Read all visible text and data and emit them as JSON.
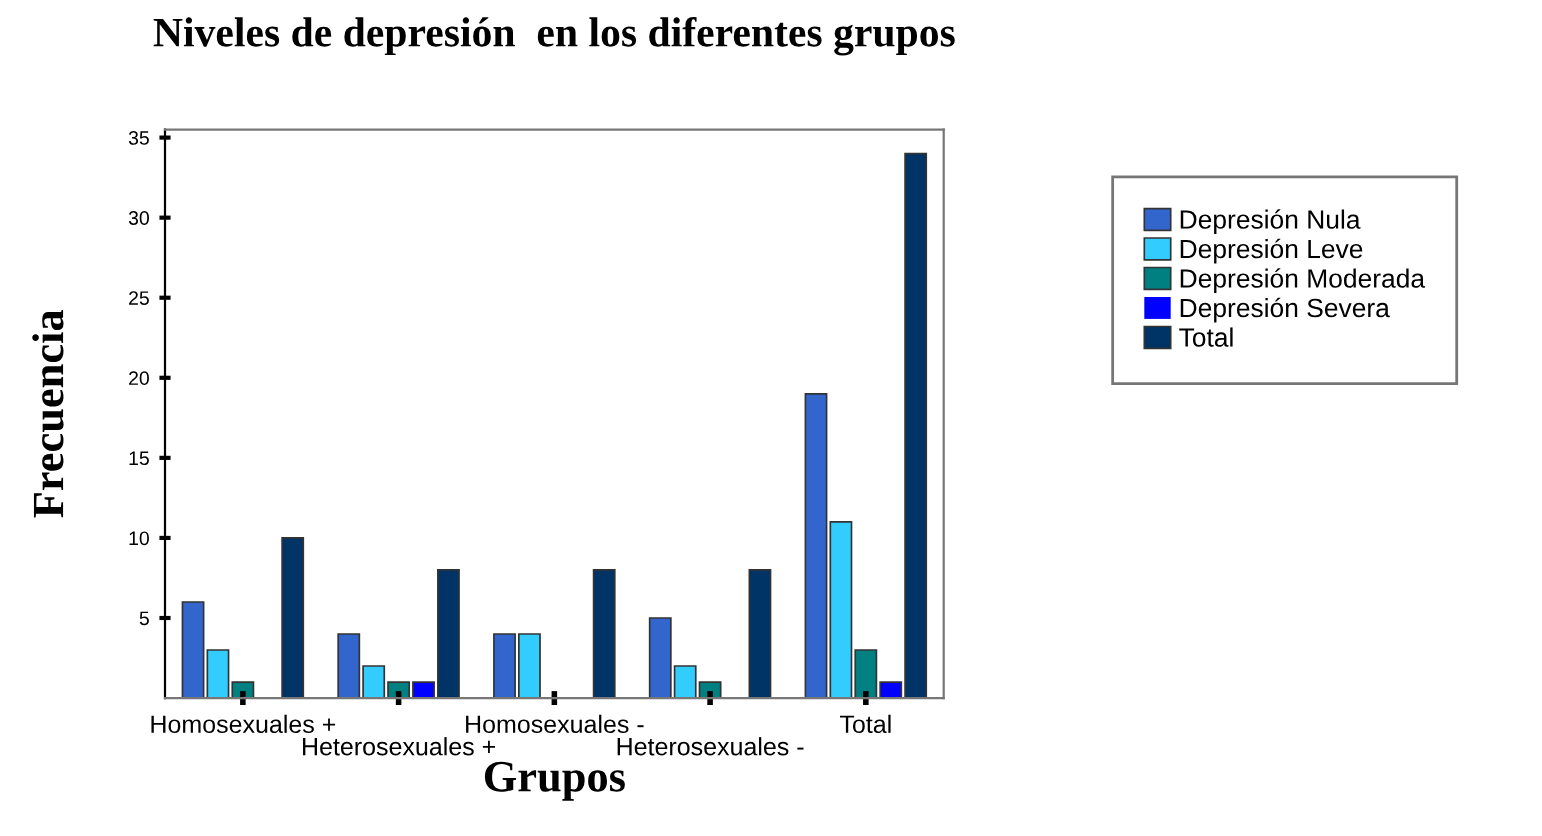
{
  "chart_data": {
    "type": "bar",
    "title": "Niveles de depresión  en los diferentes grupos",
    "xlabel": "Grupos",
    "ylabel": "Frecuencia",
    "categories": [
      "Homosexuales +",
      "Heterosexuales +",
      "Homosexuales -",
      "Heterosexuales -",
      "Total"
    ],
    "series": [
      {
        "name": "Depresión Nula",
        "color": "#3366cc",
        "values": [
          6,
          4,
          4,
          5,
          19
        ]
      },
      {
        "name": "Depresión Leve",
        "color": "#33ccff",
        "values": [
          3,
          2,
          4,
          2,
          11
        ]
      },
      {
        "name": "Depresión Moderada",
        "color": "#008080",
        "values": [
          1,
          1,
          0,
          1,
          3
        ]
      },
      {
        "name": "Depresión Severa",
        "color": "#0000ff",
        "values": [
          0,
          1,
          0,
          0,
          1
        ]
      },
      {
        "name": "Total",
        "color": "#003366",
        "values": [
          10,
          8,
          8,
          8,
          34
        ]
      }
    ],
    "ylim": [
      0,
      35.5
    ],
    "yticks": [
      5,
      10,
      15,
      20,
      25,
      30,
      35
    ],
    "grid": false,
    "legend": "top right"
  }
}
